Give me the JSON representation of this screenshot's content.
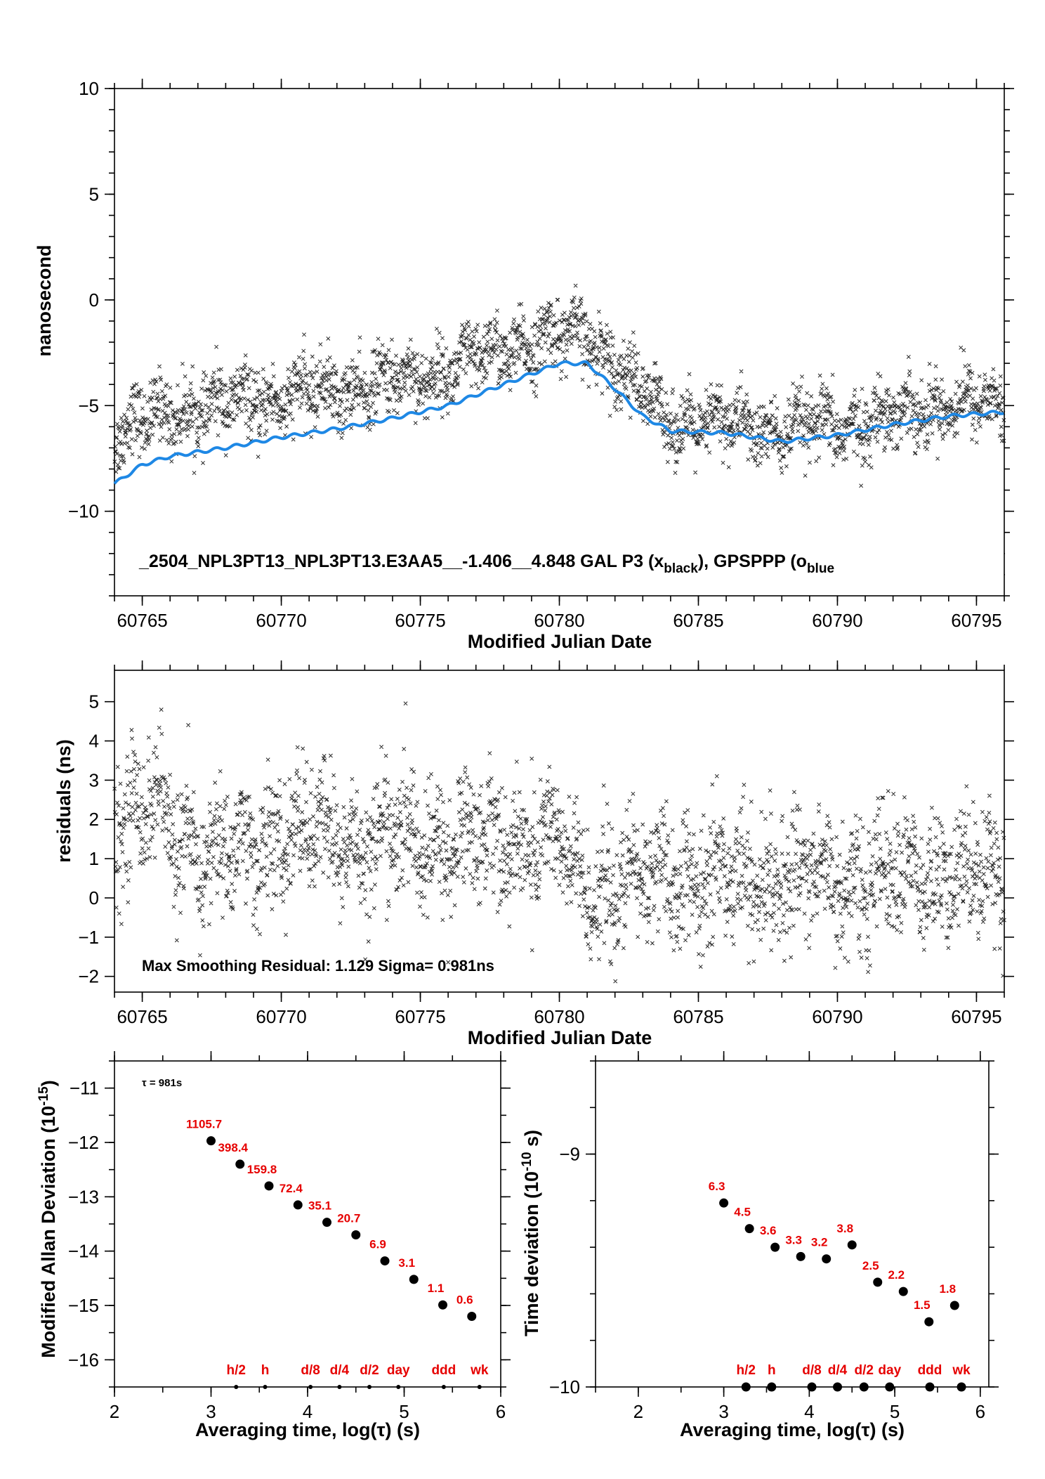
{
  "panels": {
    "top": {
      "ylabel": "nanosecond",
      "xlabel": "Modified Julian Date",
      "legend_text": "_2504_NPL3PT13_NPL3PT13.E3AA5__-1.406__4.848     GAL P3 (x",
      "legend_sub1": "black",
      "legend_mid": "),  GPSPPP (o",
      "legend_sub2": "blue"
    },
    "middle": {
      "ylabel": "residuals (ns)",
      "xlabel": "Modified Julian Date",
      "note": "Max Smoothing Residual: 1.129  Sigma= 0.981ns"
    },
    "bottom_left": {
      "ylabel_main": "Modified Allan Deviation (10",
      "ylabel_exp": "-15",
      "ylabel_end": ")",
      "xlabel": "Averaging time, log(τ) (s)",
      "tau_note": "τ = 981s"
    },
    "bottom_right": {
      "ylabel_main": "Time deviation (10",
      "ylabel_exp": "-10",
      "ylabel_end": " s)",
      "xlabel": "Averaging time, log(τ) (s)"
    }
  },
  "colors": {
    "points": "#000000",
    "smooth_line": "#1e88e5",
    "labels": "#e60000"
  },
  "chart_data": [
    {
      "id": "top",
      "type": "scatter",
      "xlim": [
        60764,
        60796
      ],
      "ylim": [
        -14,
        10
      ],
      "xticks": [
        60765,
        60770,
        60775,
        60780,
        60785,
        60790,
        60795
      ],
      "yticks": [
        -10,
        -5,
        0,
        5,
        10
      ],
      "series": [
        {
          "name": "GAL P3",
          "marker": "x",
          "trend_x": [
            60764,
            60766,
            60768,
            60770,
            60772,
            60774,
            60776,
            60778,
            60779.5,
            60781,
            60782,
            60783,
            60784,
            60786,
            60788,
            60790,
            60792,
            60794,
            60796
          ],
          "trend_y": [
            -6.3,
            -5.3,
            -5.0,
            -4.6,
            -4.3,
            -3.9,
            -3.3,
            -2.4,
            -1.8,
            -1.7,
            -2.8,
            -4.6,
            -5.7,
            -5.9,
            -6.2,
            -6.0,
            -5.5,
            -4.8,
            -5.1
          ],
          "spread": 0.8,
          "count": 2600
        },
        {
          "name": "GPSPPP",
          "line_x": [
            60764,
            60765,
            60766,
            60768,
            60770,
            60772,
            60774,
            60776,
            60778,
            60780,
            60781,
            60782,
            60783,
            60784,
            60786,
            60788,
            60790,
            60792,
            60794,
            60796
          ],
          "line_y": [
            -8.7,
            -7.8,
            -7.4,
            -7.0,
            -6.5,
            -6.1,
            -5.6,
            -5.0,
            -4.0,
            -3.0,
            -3.0,
            -4.2,
            -5.5,
            -6.2,
            -6.3,
            -6.7,
            -6.4,
            -5.9,
            -5.5,
            -5.3
          ]
        }
      ]
    },
    {
      "id": "middle",
      "type": "scatter",
      "xlim": [
        60764,
        60796
      ],
      "ylim": [
        -2.4,
        5.8
      ],
      "xticks": [
        60765,
        60770,
        60775,
        60780,
        60785,
        60790,
        60795
      ],
      "yticks": [
        -2,
        -1,
        0,
        1,
        2,
        3,
        4,
        5
      ],
      "series": [
        {
          "name": "residuals",
          "marker": "x",
          "trend_x": [
            60764,
            60765.5,
            60766.5,
            60767.5,
            60770,
            60775,
            60780,
            60780.3,
            60781,
            60785,
            60790,
            60796
          ],
          "trend_y": [
            1.8,
            2.3,
            1.5,
            0.9,
            1.6,
            1.4,
            1.5,
            0.5,
            0.3,
            0.5,
            0.5,
            0.6
          ],
          "spread": 0.8,
          "count": 2600
        }
      ]
    },
    {
      "id": "bottom_left",
      "type": "scatter",
      "xlim": [
        2,
        6
      ],
      "ylim": [
        -16.5,
        -10.5
      ],
      "xticks": [
        2,
        3,
        4,
        5,
        6
      ],
      "yticks": [
        -16,
        -15,
        -14,
        -13,
        -12,
        -11
      ],
      "points": [
        {
          "x": 3.0,
          "y": -11.97,
          "label": "1105.7"
        },
        {
          "x": 3.3,
          "y": -12.4,
          "label": "398.4"
        },
        {
          "x": 3.6,
          "y": -12.8,
          "label": "159.8"
        },
        {
          "x": 3.9,
          "y": -13.15,
          "label": "72.4"
        },
        {
          "x": 4.2,
          "y": -13.47,
          "label": "35.1"
        },
        {
          "x": 4.5,
          "y": -13.7,
          "label": "20.7"
        },
        {
          "x": 4.8,
          "y": -14.18,
          "label": "6.9"
        },
        {
          "x": 5.1,
          "y": -14.52,
          "label": "3.1"
        },
        {
          "x": 5.4,
          "y": -14.99,
          "label": "1.1"
        },
        {
          "x": 5.7,
          "y": -15.2,
          "label": "0.6"
        }
      ],
      "markers": [
        {
          "x": 3.26,
          "label": "h/2"
        },
        {
          "x": 3.56,
          "label": "h"
        },
        {
          "x": 4.03,
          "label": "d/8"
        },
        {
          "x": 4.33,
          "label": "d/4"
        },
        {
          "x": 4.64,
          "label": "d/2"
        },
        {
          "x": 4.94,
          "label": "day"
        },
        {
          "x": 5.41,
          "label": "ddd"
        },
        {
          "x": 5.78,
          "label": "wk"
        }
      ]
    },
    {
      "id": "bottom_right",
      "type": "scatter",
      "xlim": [
        1.5,
        6.1
      ],
      "ylim": [
        -10,
        -8.6
      ],
      "xticks": [
        2,
        3,
        4,
        5,
        6
      ],
      "yticks": [
        -10,
        -9
      ],
      "points": [
        {
          "x": 3.0,
          "y": -9.21,
          "label": "6.3"
        },
        {
          "x": 3.3,
          "y": -9.32,
          "label": "4.5"
        },
        {
          "x": 3.6,
          "y": -9.4,
          "label": "3.6"
        },
        {
          "x": 3.9,
          "y": -9.44,
          "label": "3.3"
        },
        {
          "x": 4.2,
          "y": -9.45,
          "label": "3.2"
        },
        {
          "x": 4.5,
          "y": -9.39,
          "label": "3.8"
        },
        {
          "x": 4.8,
          "y": -9.55,
          "label": "2.5"
        },
        {
          "x": 5.1,
          "y": -9.59,
          "label": "2.2"
        },
        {
          "x": 5.4,
          "y": -9.72,
          "label": "1.5"
        },
        {
          "x": 5.7,
          "y": -9.65,
          "label": "1.8"
        }
      ],
      "markers": [
        {
          "x": 3.26,
          "label": "h/2"
        },
        {
          "x": 3.56,
          "label": "h"
        },
        {
          "x": 4.03,
          "label": "d/8"
        },
        {
          "x": 4.33,
          "label": "d/4"
        },
        {
          "x": 4.64,
          "label": "d/2"
        },
        {
          "x": 4.94,
          "label": "day"
        },
        {
          "x": 5.41,
          "label": "ddd"
        },
        {
          "x": 5.78,
          "label": "wk"
        }
      ]
    }
  ]
}
